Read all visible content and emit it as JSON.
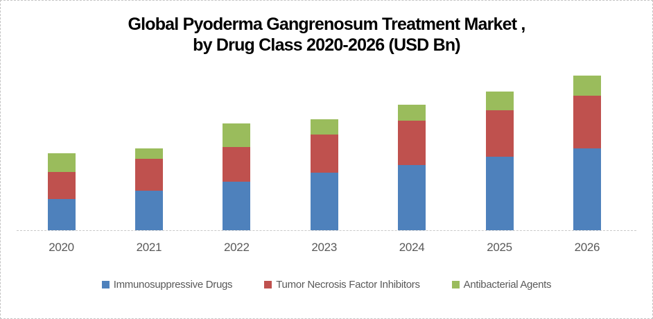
{
  "title": {
    "line1": "Global Pyoderma Gangrenosum Treatment Market ,",
    "line2": "by Drug Class 2020-2026 (USD Bn)"
  },
  "colors": {
    "immunosuppressive_blue": "#4E81BC",
    "tnf_red": "#BF514E",
    "antibacterial_green": "#9ABC5C",
    "axis_line_gray": "#c9c9c9",
    "label_gray": "#595959",
    "title_black": "#000000"
  },
  "chart_data": {
    "type": "bar",
    "stacked": true,
    "title": "Global Pyoderma Gangrenosum Treatment Market , by Drug Class 2020-2026 (USD Bn)",
    "categories": [
      "2020",
      "2021",
      "2022",
      "2023",
      "2024",
      "2025",
      "2026"
    ],
    "series": [
      {
        "name": "Immunosuppressive Drugs",
        "color": "#4E81BC",
        "values": [
          0.45,
          0.57,
          0.7,
          0.83,
          0.94,
          1.06,
          1.18
        ]
      },
      {
        "name": "Tumor Necrosis Factor Inhibitors",
        "color": "#BF514E",
        "values": [
          0.39,
          0.46,
          0.5,
          0.55,
          0.64,
          0.67,
          0.76
        ]
      },
      {
        "name": "Antibacterial Agents",
        "color": "#9ABC5C",
        "values": [
          0.27,
          0.15,
          0.34,
          0.22,
          0.23,
          0.27,
          0.29
        ]
      }
    ],
    "xlabel": "",
    "ylabel": "",
    "ylim": [
      0,
      2.5
    ],
    "y_axis_visible": false,
    "grid": false,
    "data_labels": false,
    "legend_position": "bottom"
  }
}
